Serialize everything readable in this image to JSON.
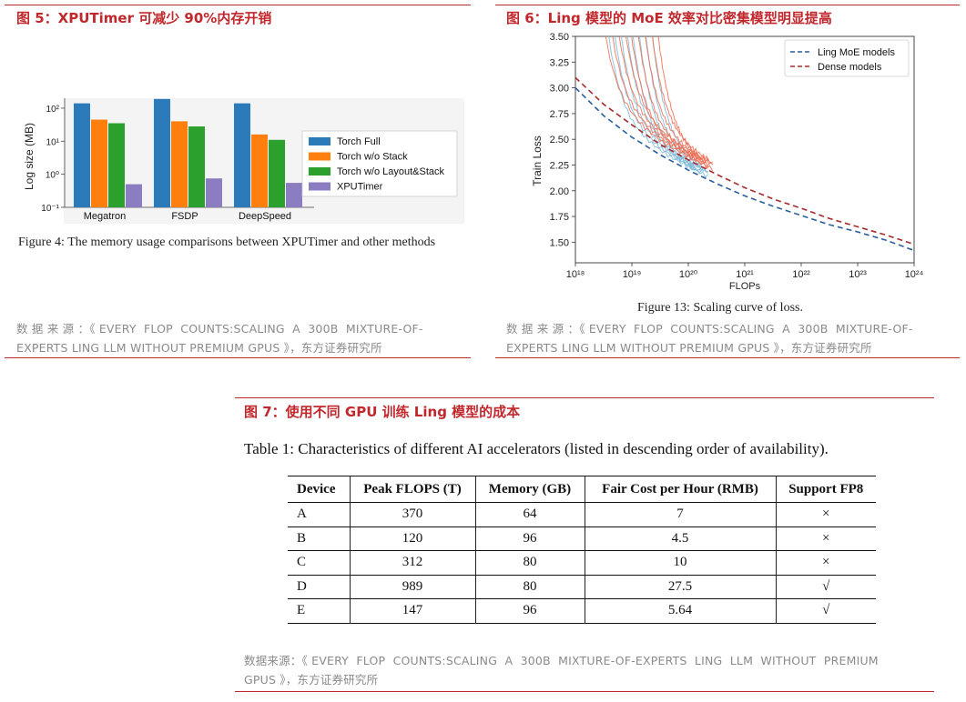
{
  "fig5": {
    "title": "图 5：XPUTimer 可减少 90%内存开销",
    "caption": "Figure 4: The memory usage comparisons between XPUTimer and other methods",
    "source_line1": "数 据 来 源 ：《 EVERY  FLOP  COUNTS:SCALING  A  300B  MIXTURE-OF-",
    "source_line2": "EXPERTS LING LLM WITHOUT PREMIUM GPUS 》，东方证券研究所"
  },
  "fig6": {
    "title": "图 6：Ling 模型的 MoE 效率对比密集模型明显提高",
    "caption": "Figure 13: Scaling curve of loss.",
    "source_line1": "数 据 来 源 ：《 EVERY  FLOP  COUNTS:SCALING  A  300B  MIXTURE-OF-",
    "source_line2": "EXPERTS LING LLM WITHOUT PREMIUM GPUS 》，东方证券研究所"
  },
  "fig7": {
    "title": "图 7：使用不同 GPU 训练 Ling 模型的成本",
    "table_caption": "Table 1: Characteristics of different AI accelerators (listed in descending order of availability).",
    "source_line1": "数据来源：《 EVERY  FLOP  COUNTS:SCALING  A  300B  MIXTURE-OF-EXPERTS  LING  LLM  WITHOUT  PREMIUM",
    "source_line2": "GPUS 》，东方证券研究所",
    "headers": [
      "Device",
      "Peak FLOPS (T)",
      "Memory (GB)",
      "Fair Cost per Hour (RMB)",
      "Support FP8"
    ],
    "rows": [
      [
        "A",
        "370",
        "64",
        "7",
        "×"
      ],
      [
        "B",
        "120",
        "96",
        "4.5",
        "×"
      ],
      [
        "C",
        "312",
        "80",
        "10",
        "×"
      ],
      [
        "D",
        "989",
        "80",
        "27.5",
        "√"
      ],
      [
        "E",
        "147",
        "96",
        "5.64",
        "√"
      ]
    ]
  },
  "chart_data": [
    {
      "type": "bar",
      "title": "",
      "xlabel": "",
      "ylabel": "Log size (MB)",
      "yscale": "log",
      "ylim": [
        0.1,
        200
      ],
      "y_ticks": [
        "10⁻¹",
        "10⁰",
        "10¹",
        "10²"
      ],
      "categories": [
        "Megatron",
        "FSDP",
        "DeepSpeed"
      ],
      "series": [
        {
          "name": "Torch Full",
          "color": "#2b7bba",
          "values": [
            140,
            190,
            140
          ]
        },
        {
          "name": "Torch w/o Stack",
          "color": "#ff7f0e",
          "values": [
            45,
            40,
            16
          ]
        },
        {
          "name": "Torch w/o Layout&Stack",
          "color": "#2ca02c",
          "values": [
            35,
            28,
            11
          ]
        },
        {
          "name": "XPUTimer",
          "color": "#8c7dc2",
          "values": [
            0.5,
            0.75,
            0.55
          ]
        }
      ],
      "legend_position": "right"
    },
    {
      "type": "line",
      "title": "",
      "xlabel": "FLOPs",
      "ylabel": "Train Loss",
      "xscale": "log",
      "xlim_exp": [
        18,
        24
      ],
      "x_ticks": [
        "10¹⁸",
        "10¹⁹",
        "10²⁰",
        "10²¹",
        "10²²",
        "10²³",
        "10²⁴"
      ],
      "ylim": [
        1.3,
        3.5
      ],
      "y_ticks": [
        "1.50",
        "1.75",
        "2.00",
        "2.25",
        "2.50",
        "2.75",
        "3.00",
        "3.25",
        "3.50"
      ],
      "series": [
        {
          "name": "Ling MoE models",
          "style": "dashed",
          "color": "#2a5d9f",
          "x_exp": [
            18,
            18.5,
            19,
            19.5,
            20,
            20.5,
            21,
            21.5,
            22,
            22.5,
            23,
            23.5,
            24
          ],
          "y": [
            3.0,
            2.73,
            2.52,
            2.35,
            2.2,
            2.07,
            1.95,
            1.85,
            1.76,
            1.67,
            1.6,
            1.52,
            1.42
          ]
        },
        {
          "name": "Dense models",
          "style": "dashed",
          "color": "#a52a2a",
          "x_exp": [
            18,
            18.5,
            19,
            19.5,
            20,
            20.5,
            21,
            21.5,
            22,
            22.5,
            23,
            23.5,
            24
          ],
          "y": [
            3.1,
            2.84,
            2.64,
            2.45,
            2.3,
            2.16,
            2.03,
            1.92,
            1.83,
            1.73,
            1.65,
            1.57,
            1.48
          ]
        }
      ],
      "legend_position": "top-right"
    }
  ]
}
